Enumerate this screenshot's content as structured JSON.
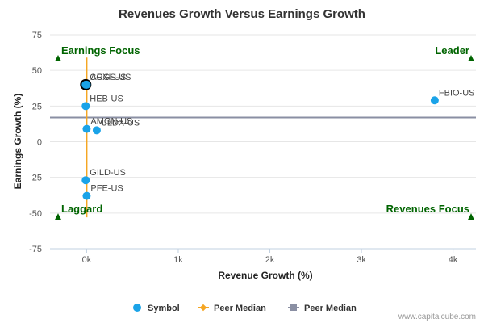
{
  "chart_data": {
    "type": "scatter",
    "title": "Revenues Growth Versus Earnings Growth",
    "xlabel": "Revenue Growth (%)",
    "ylabel": "Earnings Growth (%)",
    "xlim": [
      -400,
      4250
    ],
    "ylim": [
      -75,
      75
    ],
    "x_ticks": [
      {
        "value": 0,
        "label": "0k"
      },
      {
        "value": 1000,
        "label": "1k"
      },
      {
        "value": 2000,
        "label": "2k"
      },
      {
        "value": 3000,
        "label": "3k"
      },
      {
        "value": 4000,
        "label": "4k"
      }
    ],
    "y_ticks": [
      {
        "value": 75,
        "label": "75"
      },
      {
        "value": 50,
        "label": "50"
      },
      {
        "value": 25,
        "label": "25"
      },
      {
        "value": 0,
        "label": "0"
      },
      {
        "value": -25,
        "label": "-25"
      },
      {
        "value": -50,
        "label": "-50"
      },
      {
        "value": -75,
        "label": "-75"
      }
    ],
    "points": [
      {
        "symbol": "CCXI-US",
        "x": -10,
        "y": 40,
        "highlight": true
      },
      {
        "symbol": "ARGS-US",
        "x": 0,
        "y": 40,
        "highlight": false
      },
      {
        "symbol": "HEB-US",
        "x": -10,
        "y": 25,
        "highlight": false
      },
      {
        "symbol": "AMGN-US",
        "x": 0,
        "y": 9,
        "highlight": false
      },
      {
        "symbol": "CLDX-US",
        "x": 110,
        "y": 8,
        "highlight": false
      },
      {
        "symbol": "FBIO-US",
        "x": 3800,
        "y": 29,
        "highlight": false
      },
      {
        "symbol": "GILD-US",
        "x": -10,
        "y": -27,
        "highlight": false
      },
      {
        "symbol": "PFE-US",
        "x": 0,
        "y": -38,
        "highlight": false
      }
    ],
    "peer_median_x": 0,
    "peer_median_y": 17,
    "quadrants": {
      "top_left": "Earnings Focus",
      "top_right": "Leader",
      "bottom_left": "Laggard",
      "bottom_right": "Revenues Focus"
    },
    "quadrant_marker_y": [
      58,
      -53
    ],
    "median_x_extent": [
      -53,
      59
    ],
    "legend": [
      {
        "label": "Symbol",
        "kind": "dot"
      },
      {
        "label": "Peer Median",
        "kind": "vline"
      },
      {
        "label": "Peer Median",
        "kind": "hline"
      }
    ],
    "legend_placement": "bottom-center",
    "colors": {
      "point": "#1aa3e8",
      "point_highlight": "#000000",
      "median_x": "#f5a623",
      "median_y": "#8a8fa3",
      "quadrant": "#006400",
      "baseline": "#c0d0e0"
    }
  },
  "credit": "www.capitalcube.com"
}
